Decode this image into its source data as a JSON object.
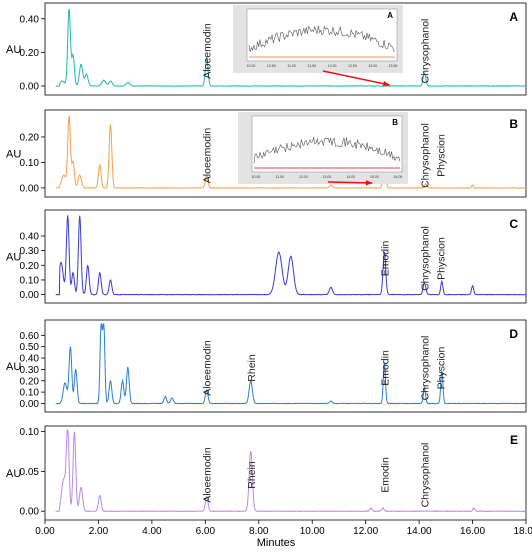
{
  "chart_data": {
    "type": "line",
    "xlabel": "Minutes",
    "xlim": [
      0,
      18
    ],
    "x_ticks": [
      "0.00",
      "2.00",
      "4.00",
      "6.00",
      "8.00",
      "10.00",
      "12.00",
      "14.00",
      "16.00",
      "18.00"
    ],
    "panels": [
      {
        "id": "A",
        "label": "A",
        "ylabel": "AU",
        "ylim": [
          -0.03,
          0.47
        ],
        "y_ticks": [
          "0.00",
          "0.20",
          "0.40"
        ],
        "color": "#1fb8b0",
        "peaks": [
          {
            "x": 0.65,
            "h": 0.03,
            "w": 0.08
          },
          {
            "x": 0.9,
            "h": 0.46,
            "w": 0.05
          },
          {
            "x": 1.05,
            "h": 0.18,
            "w": 0.05
          },
          {
            "x": 1.35,
            "h": 0.13,
            "w": 0.06
          },
          {
            "x": 1.55,
            "h": 0.07,
            "w": 0.06
          },
          {
            "x": 2.2,
            "h": 0.035,
            "w": 0.07
          },
          {
            "x": 2.45,
            "h": 0.03,
            "w": 0.06
          },
          {
            "x": 3.1,
            "h": 0.02,
            "w": 0.07
          },
          {
            "x": 6.05,
            "h": 0.165,
            "w": 0.05
          },
          {
            "x": 14.2,
            "h": 0.08,
            "w": 0.05
          }
        ],
        "labels": [
          {
            "text": "Aloeemodin",
            "x": 6.05
          },
          {
            "text": "Chrysophanol",
            "x": 14.2
          }
        ],
        "inset": {
          "label": "A",
          "x_ticks": [
            "10.00",
            "10.50",
            "11.00",
            "11.50",
            "12.00",
            "12.50",
            "13.00",
            "13.50"
          ]
        }
      },
      {
        "id": "B",
        "label": "B",
        "ylabel": "AU",
        "ylim": [
          -0.02,
          0.29
        ],
        "y_ticks": [
          "0.00",
          "0.10",
          "0.20"
        ],
        "color": "#f5a04a",
        "peaks": [
          {
            "x": 0.7,
            "h": 0.05,
            "w": 0.08
          },
          {
            "x": 0.9,
            "h": 0.28,
            "w": 0.05
          },
          {
            "x": 1.05,
            "h": 0.1,
            "w": 0.05
          },
          {
            "x": 1.3,
            "h": 0.05,
            "w": 0.06
          },
          {
            "x": 2.05,
            "h": 0.09,
            "w": 0.05
          },
          {
            "x": 2.45,
            "h": 0.25,
            "w": 0.05
          },
          {
            "x": 6.05,
            "h": 0.05,
            "w": 0.05
          },
          {
            "x": 10.7,
            "h": 0.012,
            "w": 0.05
          },
          {
            "x": 12.7,
            "h": 0.1,
            "w": 0.05
          },
          {
            "x": 14.25,
            "h": 0.015,
            "w": 0.04
          },
          {
            "x": 16.0,
            "h": 0.01,
            "w": 0.04
          }
        ],
        "labels": [
          {
            "text": "Aloeemodin",
            "x": 6.05
          },
          {
            "text": "Emodin",
            "x": 12.7
          },
          {
            "text": "Chrysophanol",
            "x": 14.2
          },
          {
            "text": "Physcion",
            "x": 14.8
          }
        ],
        "inset": {
          "label": "B",
          "x_ticks": [
            "10.00",
            "11.00",
            "12.00",
            "13.00",
            "14.00",
            "15.00",
            "16.00"
          ]
        }
      },
      {
        "id": "C",
        "label": "C",
        "ylabel": "AU",
        "ylim": [
          -0.03,
          0.55
        ],
        "y_ticks": [
          "0.00",
          "0.10",
          "0.20",
          "0.30",
          "0.40"
        ],
        "color": "#3a3ad4",
        "peaks": [
          {
            "x": 0.6,
            "h": 0.22,
            "w": 0.08
          },
          {
            "x": 0.85,
            "h": 0.54,
            "w": 0.05
          },
          {
            "x": 1.05,
            "h": 0.15,
            "w": 0.05
          },
          {
            "x": 1.3,
            "h": 0.54,
            "w": 0.05
          },
          {
            "x": 1.6,
            "h": 0.2,
            "w": 0.05
          },
          {
            "x": 2.05,
            "h": 0.15,
            "w": 0.05
          },
          {
            "x": 2.45,
            "h": 0.1,
            "w": 0.05
          },
          {
            "x": 8.75,
            "h": 0.29,
            "w": 0.12
          },
          {
            "x": 9.2,
            "h": 0.26,
            "w": 0.1
          },
          {
            "x": 10.7,
            "h": 0.05,
            "w": 0.06
          },
          {
            "x": 12.7,
            "h": 0.29,
            "w": 0.05
          },
          {
            "x": 14.2,
            "h": 0.08,
            "w": 0.05
          },
          {
            "x": 14.85,
            "h": 0.09,
            "w": 0.04
          },
          {
            "x": 16.0,
            "h": 0.06,
            "w": 0.04
          }
        ],
        "labels": [
          {
            "text": "Emodin",
            "x": 12.7
          },
          {
            "text": "Chrysophanol",
            "x": 14.2
          },
          {
            "text": "Physcion",
            "x": 14.8
          }
        ]
      },
      {
        "id": "D",
        "label": "D",
        "ylabel": "AU",
        "ylim": [
          -0.04,
          0.7
        ],
        "y_ticks": [
          "0.00",
          "0.10",
          "0.20",
          "0.30",
          "0.40",
          "0.50",
          "0.60"
        ],
        "color": "#2a7fd0",
        "peaks": [
          {
            "x": 0.75,
            "h": 0.18,
            "w": 0.07
          },
          {
            "x": 0.95,
            "h": 0.5,
            "w": 0.05
          },
          {
            "x": 1.15,
            "h": 0.3,
            "w": 0.05
          },
          {
            "x": 2.1,
            "h": 0.7,
            "w": 0.04
          },
          {
            "x": 2.2,
            "h": 0.7,
            "w": 0.04
          },
          {
            "x": 2.45,
            "h": 0.2,
            "w": 0.05
          },
          {
            "x": 2.9,
            "h": 0.2,
            "w": 0.05
          },
          {
            "x": 3.1,
            "h": 0.32,
            "w": 0.05
          },
          {
            "x": 4.5,
            "h": 0.06,
            "w": 0.05
          },
          {
            "x": 4.75,
            "h": 0.05,
            "w": 0.05
          },
          {
            "x": 6.05,
            "h": 0.12,
            "w": 0.05
          },
          {
            "x": 7.7,
            "h": 0.2,
            "w": 0.06
          },
          {
            "x": 10.7,
            "h": 0.02,
            "w": 0.05
          },
          {
            "x": 12.7,
            "h": 0.36,
            "w": 0.04
          },
          {
            "x": 14.2,
            "h": 0.14,
            "w": 0.04
          },
          {
            "x": 14.85,
            "h": 0.29,
            "w": 0.04
          }
        ],
        "labels": [
          {
            "text": "Aloeemodin",
            "x": 6.05
          },
          {
            "text": "Rhein",
            "x": 7.7
          },
          {
            "text": "Emodin",
            "x": 12.7
          },
          {
            "text": "Chrysophanol",
            "x": 14.2
          },
          {
            "text": "Physcion",
            "x": 14.8
          }
        ]
      },
      {
        "id": "E",
        "label": "E",
        "ylabel": "AU",
        "ylim": [
          -0.006,
          0.102
        ],
        "y_ticks": [
          "0.00",
          "0.05",
          "0.10"
        ],
        "color": "#b98ae8",
        "peaks": [
          {
            "x": 0.7,
            "h": 0.04,
            "w": 0.08
          },
          {
            "x": 0.85,
            "h": 0.1,
            "w": 0.05
          },
          {
            "x": 1.1,
            "h": 0.1,
            "w": 0.05
          },
          {
            "x": 1.35,
            "h": 0.03,
            "w": 0.06
          },
          {
            "x": 2.05,
            "h": 0.02,
            "w": 0.05
          },
          {
            "x": 6.05,
            "h": 0.018,
            "w": 0.05
          },
          {
            "x": 7.7,
            "h": 0.076,
            "w": 0.06
          },
          {
            "x": 12.2,
            "h": 0.004,
            "w": 0.04
          },
          {
            "x": 12.65,
            "h": 0.004,
            "w": 0.04
          },
          {
            "x": 16.05,
            "h": 0.004,
            "w": 0.04
          }
        ],
        "labels": [
          {
            "text": "Aloeemodin",
            "x": 6.05
          },
          {
            "text": "Rhein",
            "x": 7.7
          },
          {
            "text": "Emodin",
            "x": 12.7
          },
          {
            "text": "Chrysophanol",
            "x": 14.2
          }
        ]
      }
    ]
  }
}
